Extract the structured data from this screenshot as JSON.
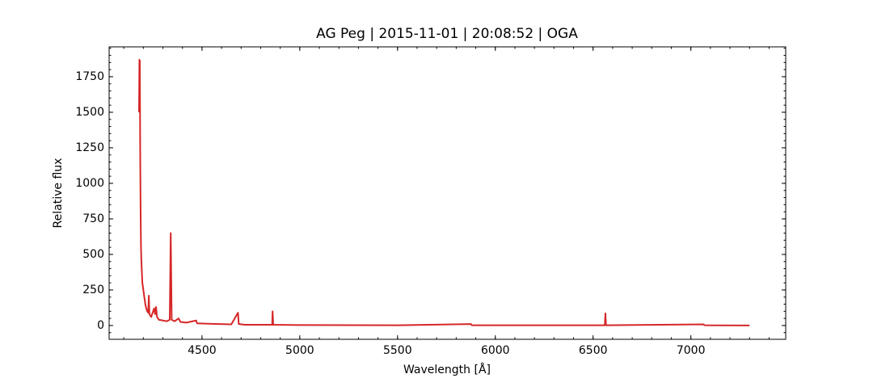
{
  "chart_data": {
    "type": "line",
    "title": "AG Peg | 2015-11-01 | 20:08:52 | OGA",
    "xlabel": "Wavelength [Å]",
    "ylabel": "Relative flux",
    "color": "#d62728",
    "x": [
      4178,
      4180,
      4182,
      4184,
      4186,
      4188,
      4190,
      4195,
      4200,
      4205,
      4210,
      4215,
      4220,
      4225,
      4228,
      4231,
      4240,
      4250,
      4255,
      4260,
      4265,
      4270,
      4280,
      4300,
      4320,
      4335,
      4340,
      4345,
      4360,
      4380,
      4390,
      4420,
      4470,
      4475,
      4550,
      4650,
      4684,
      4688,
      4720,
      4859,
      4861,
      4864,
      5000,
      5500,
      5876,
      5880,
      6500,
      6560,
      6563,
      6566,
      7065,
      7070,
      7300
    ],
    "values": [
      1500,
      1870,
      1860,
      1200,
      800,
      550,
      450,
      300,
      250,
      200,
      150,
      120,
      100,
      90,
      210,
      80,
      60,
      100,
      120,
      80,
      130,
      60,
      40,
      35,
      30,
      40,
      650,
      40,
      30,
      50,
      25,
      20,
      35,
      15,
      12,
      8,
      90,
      10,
      5,
      5,
      100,
      5,
      3,
      2,
      10,
      2,
      2,
      2,
      85,
      2,
      8,
      2,
      0
    ],
    "xlim": [
      4025,
      7485
    ],
    "ylim": [
      -97,
      1960
    ],
    "xticks": [
      4500,
      5000,
      5500,
      6000,
      6500,
      7000
    ],
    "yticks": [
      0,
      250,
      500,
      750,
      1000,
      1250,
      1500,
      1750
    ]
  }
}
